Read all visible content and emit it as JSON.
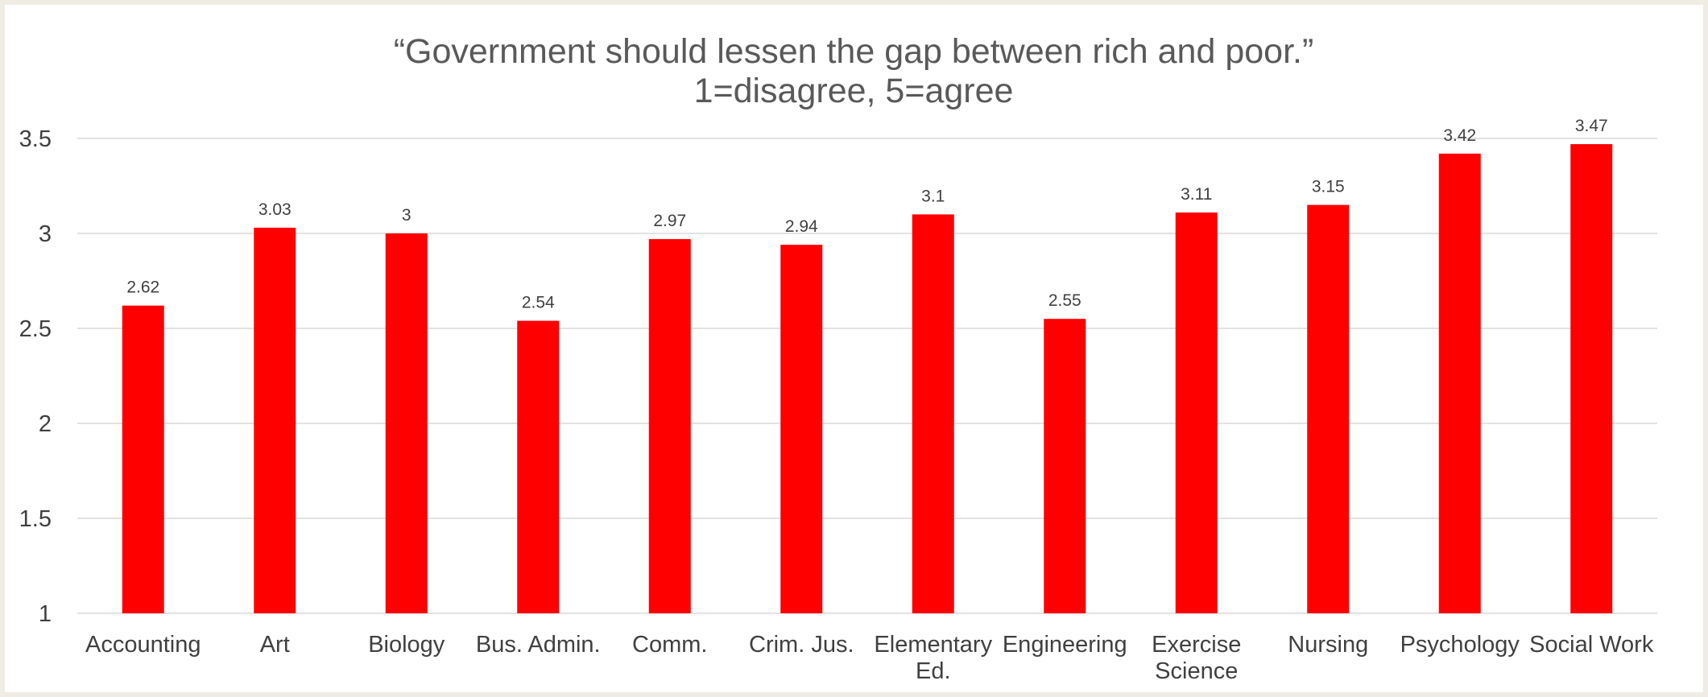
{
  "chart_data": {
    "type": "bar",
    "title_lines": [
      "“Government should lessen the gap between rich and poor.”",
      "1=disagree, 5=agree"
    ],
    "categories": [
      [
        "Accounting"
      ],
      [
        "Art"
      ],
      [
        "Biology"
      ],
      [
        "Bus. Admin."
      ],
      [
        "Comm."
      ],
      [
        "Crim. Jus."
      ],
      [
        "Elementary",
        "Ed."
      ],
      [
        "Engineering"
      ],
      [
        "Exercise",
        "Science"
      ],
      [
        "Nursing"
      ],
      [
        "Psychology"
      ],
      [
        "Social Work"
      ]
    ],
    "values": [
      2.62,
      3.03,
      3,
      2.54,
      2.97,
      2.94,
      3.1,
      2.55,
      3.11,
      3.15,
      3.42,
      3.47
    ],
    "data_labels": [
      "2.62",
      "3.03",
      "3",
      "2.54",
      "2.97",
      "2.94",
      "3.1",
      "2.55",
      "3.11",
      "3.15",
      "3.42",
      "3.47"
    ],
    "ylim": [
      1,
      3.5
    ],
    "yticks": [
      1,
      1.5,
      2,
      2.5,
      3,
      3.5
    ],
    "ytick_labels": [
      "1",
      "1.5",
      "2",
      "2.5",
      "3",
      "3.5"
    ],
    "grid": true,
    "bar_color": "#ff0000",
    "gridline_color": "#d9d9d9",
    "background_color": "#ffffff",
    "border_color": "#efece3"
  }
}
